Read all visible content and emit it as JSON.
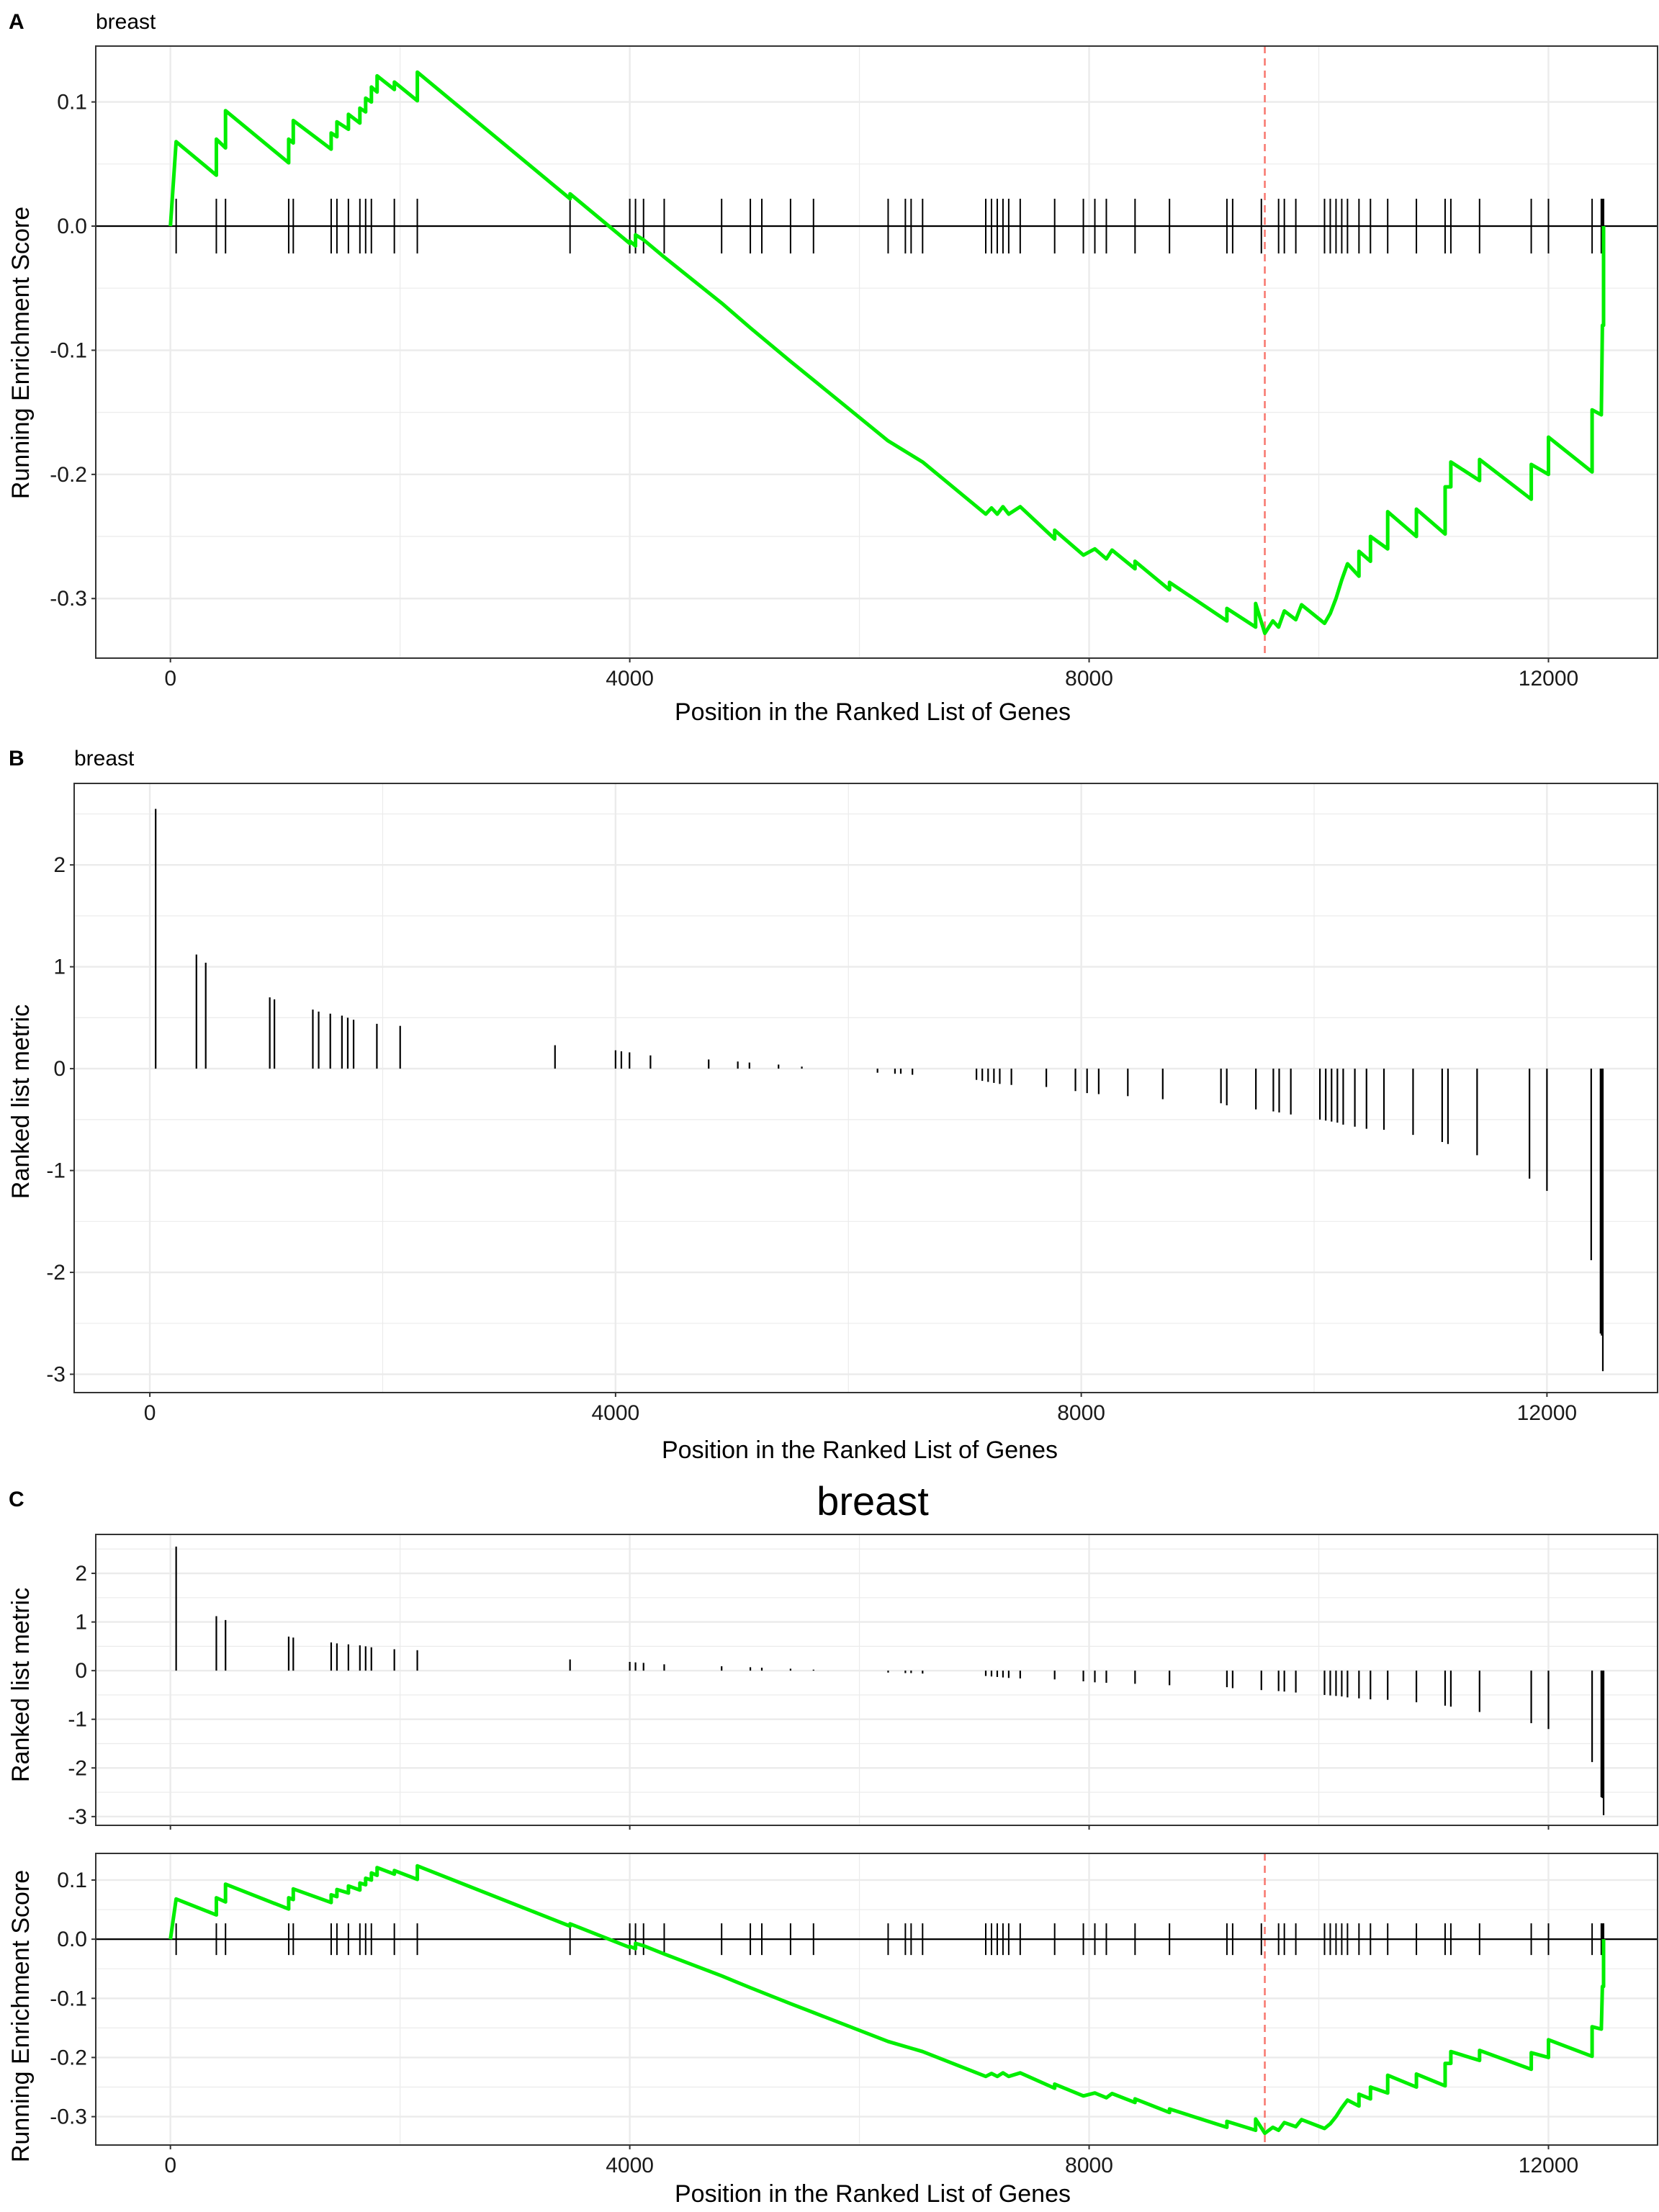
{
  "panels": {
    "A": {
      "letter": "A",
      "subtitle": "breast"
    },
    "B": {
      "letter": "B",
      "subtitle": "breast"
    },
    "C": {
      "letter": "C",
      "title": "breast"
    }
  },
  "colors": {
    "es_line": "#00ee00",
    "peak_line": "#f8766d",
    "rug": "#000000",
    "grid": "#ebebeb",
    "border": "#333333"
  },
  "labels": {
    "x_axis": "Position in the Ranked List of Genes",
    "y_es": "Running Enrichment Score",
    "y_metric": "Ranked list metric"
  },
  "chart_data": {
    "type": "line",
    "x_ticks": [
      0,
      4000,
      8000,
      12000
    ],
    "x_tick_labels": [
      "0",
      "4000",
      "8000",
      "12000"
    ],
    "peak_position": 9530,
    "hit_positions": [
      50,
      400,
      480,
      1030,
      1070,
      1400,
      1450,
      1550,
      1650,
      1700,
      1750,
      1950,
      2150,
      3480,
      4000,
      4050,
      4120,
      4300,
      4800,
      5050,
      5150,
      5400,
      5600,
      6250,
      6400,
      6450,
      6550,
      7100,
      7150,
      7200,
      7250,
      7300,
      7400,
      7700,
      7950,
      8050,
      8150,
      8400,
      8700,
      9200,
      9250,
      9500,
      9650,
      9700,
      9800,
      10050,
      10100,
      10150,
      10200,
      10250,
      10350,
      10450,
      10600,
      10850,
      11100,
      11150,
      11400,
      11850,
      12000,
      12380,
      12460,
      12470,
      12480
    ],
    "metric_values": [
      2.55,
      1.12,
      1.04,
      0.7,
      0.68,
      0.58,
      0.56,
      0.54,
      0.52,
      0.5,
      0.48,
      0.44,
      0.42,
      0.23,
      0.18,
      0.17,
      0.16,
      0.13,
      0.09,
      0.07,
      0.06,
      0.04,
      0.02,
      -0.04,
      -0.05,
      -0.05,
      -0.06,
      -0.11,
      -0.12,
      -0.13,
      -0.14,
      -0.15,
      -0.16,
      -0.18,
      -0.22,
      -0.24,
      -0.25,
      -0.27,
      -0.3,
      -0.34,
      -0.36,
      -0.4,
      -0.42,
      -0.43,
      -0.45,
      -0.5,
      -0.51,
      -0.52,
      -0.53,
      -0.55,
      -0.57,
      -0.59,
      -0.6,
      -0.65,
      -0.72,
      -0.74,
      -0.85,
      -1.08,
      -1.2,
      -1.88,
      -2.6,
      -2.62,
      -2.97
    ],
    "running_es": [
      [
        0,
        0
      ],
      [
        50,
        0.068
      ],
      [
        400,
        0.041
      ],
      [
        400,
        0.07
      ],
      [
        480,
        0.063
      ],
      [
        480,
        0.093
      ],
      [
        1030,
        0.051
      ],
      [
        1030,
        0.07
      ],
      [
        1070,
        0.067
      ],
      [
        1070,
        0.085
      ],
      [
        1400,
        0.062
      ],
      [
        1400,
        0.075
      ],
      [
        1450,
        0.072
      ],
      [
        1450,
        0.084
      ],
      [
        1550,
        0.078
      ],
      [
        1550,
        0.09
      ],
      [
        1650,
        0.083
      ],
      [
        1650,
        0.095
      ],
      [
        1700,
        0.092
      ],
      [
        1700,
        0.103
      ],
      [
        1750,
        0.1
      ],
      [
        1750,
        0.112
      ],
      [
        1800,
        0.108
      ],
      [
        1800,
        0.121
      ],
      [
        1950,
        0.11
      ],
      [
        1950,
        0.116
      ],
      [
        2150,
        0.101
      ],
      [
        2150,
        0.124
      ],
      [
        3480,
        0.022
      ],
      [
        3480,
        0.026
      ],
      [
        4000,
        -0.014
      ],
      [
        4000,
        -0.012
      ],
      [
        4050,
        -0.016
      ],
      [
        4050,
        -0.007
      ],
      [
        4120,
        -0.011
      ],
      [
        4300,
        -0.025
      ],
      [
        4800,
        -0.062
      ],
      [
        5050,
        -0.082
      ],
      [
        5400,
        -0.109
      ],
      [
        5600,
        -0.124
      ],
      [
        6250,
        -0.173
      ],
      [
        6550,
        -0.19
      ],
      [
        7100,
        -0.232
      ],
      [
        7150,
        -0.227
      ],
      [
        7200,
        -0.232
      ],
      [
        7250,
        -0.226
      ],
      [
        7300,
        -0.232
      ],
      [
        7400,
        -0.226
      ],
      [
        7700,
        -0.252
      ],
      [
        7700,
        -0.245
      ],
      [
        7950,
        -0.265
      ],
      [
        8050,
        -0.26
      ],
      [
        8150,
        -0.268
      ],
      [
        8200,
        -0.261
      ],
      [
        8400,
        -0.276
      ],
      [
        8400,
        -0.27
      ],
      [
        8700,
        -0.293
      ],
      [
        8700,
        -0.287
      ],
      [
        9200,
        -0.318
      ],
      [
        9200,
        -0.308
      ],
      [
        9450,
        -0.323
      ],
      [
        9450,
        -0.304
      ],
      [
        9530,
        -0.328
      ],
      [
        9600,
        -0.318
      ],
      [
        9650,
        -0.323
      ],
      [
        9700,
        -0.31
      ],
      [
        9800,
        -0.317
      ],
      [
        9850,
        -0.305
      ],
      [
        10050,
        -0.32
      ],
      [
        10100,
        -0.312
      ],
      [
        10150,
        -0.3
      ],
      [
        10200,
        -0.285
      ],
      [
        10250,
        -0.272
      ],
      [
        10350,
        -0.282
      ],
      [
        10350,
        -0.262
      ],
      [
        10450,
        -0.27
      ],
      [
        10450,
        -0.25
      ],
      [
        10600,
        -0.26
      ],
      [
        10600,
        -0.23
      ],
      [
        10850,
        -0.25
      ],
      [
        10850,
        -0.228
      ],
      [
        11100,
        -0.248
      ],
      [
        11100,
        -0.21
      ],
      [
        11150,
        -0.21
      ],
      [
        11150,
        -0.19
      ],
      [
        11400,
        -0.205
      ],
      [
        11400,
        -0.188
      ],
      [
        11850,
        -0.22
      ],
      [
        11850,
        -0.192
      ],
      [
        12000,
        -0.2
      ],
      [
        12000,
        -0.17
      ],
      [
        12380,
        -0.198
      ],
      [
        12380,
        -0.148
      ],
      [
        12460,
        -0.152
      ],
      [
        12470,
        -0.08
      ],
      [
        12480,
        -0.08
      ],
      [
        12480,
        0
      ]
    ],
    "panel_A": {
      "ylabel": "Running Enrichment Score",
      "xlabel": "Position in the Ranked List of Genes",
      "y_ticks": [
        0.1,
        0.0,
        -0.1,
        -0.2,
        -0.3
      ],
      "y_tick_labels": [
        "0.1",
        "0.0",
        "-0.1",
        "-0.2",
        "-0.3"
      ],
      "ylim": [
        -0.348,
        0.145
      ],
      "xlim": [
        -650,
        12950
      ]
    },
    "panel_B": {
      "type": "bar",
      "ylabel": "Ranked list metric",
      "xlabel": "Position in the Ranked List of Genes",
      "y_ticks": [
        2,
        1,
        0,
        -1,
        -2,
        -3
      ],
      "y_tick_labels": [
        "2",
        "1",
        "0",
        "-1",
        "-2",
        "-3"
      ],
      "ylim": [
        -3.18,
        2.8
      ],
      "xlim": [
        -650,
        12950
      ]
    },
    "panel_C_top": {
      "type": "bar",
      "ylabel": "Ranked list metric",
      "y_ticks": [
        2,
        1,
        0,
        -1,
        -2,
        -3
      ],
      "y_tick_labels": [
        "2",
        "1",
        "0",
        "-1",
        "-2",
        "-3"
      ],
      "ylim": [
        -3.18,
        2.8
      ],
      "xlim": [
        -650,
        12950
      ]
    },
    "panel_C_bottom": {
      "ylabel": "Running Enrichment Score",
      "xlabel": "Position in the Ranked List of Genes",
      "y_ticks": [
        0.1,
        0.0,
        -0.1,
        -0.2,
        -0.3
      ],
      "y_tick_labels": [
        "0.1",
        "0.0",
        "-0.1",
        "-0.2",
        "-0.3"
      ],
      "ylim": [
        -0.348,
        0.145
      ],
      "xlim": [
        -650,
        12950
      ]
    }
  }
}
